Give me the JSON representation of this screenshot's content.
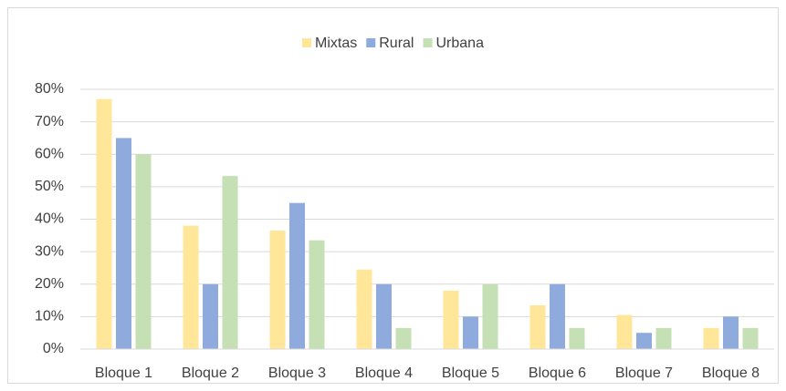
{
  "chart_data": {
    "type": "bar",
    "categories": [
      "Bloque 1",
      "Bloque 2",
      "Bloque 3",
      "Bloque 4",
      "Bloque 5",
      "Bloque 6",
      "Bloque 7",
      "Bloque 8"
    ],
    "series": [
      {
        "name": "Mixtas",
        "color": "#ffe699",
        "values": [
          77,
          38,
          36.5,
          24.5,
          18,
          13.5,
          10.5,
          6.5
        ]
      },
      {
        "name": "Rural",
        "color": "#8faadc",
        "values": [
          65,
          20,
          45,
          20,
          10,
          20,
          5,
          10
        ]
      },
      {
        "name": "Urbana",
        "color": "#c5e0b4",
        "values": [
          60,
          53.3,
          33.5,
          6.5,
          20,
          6.5,
          6.5,
          6.5
        ]
      }
    ],
    "ylim": [
      0,
      80
    ],
    "yticks": [
      {
        "value": 0,
        "label": "0%"
      },
      {
        "value": 10,
        "label": "10%"
      },
      {
        "value": 20,
        "label": "20%"
      },
      {
        "value": 30,
        "label": "30%"
      },
      {
        "value": 40,
        "label": "40%"
      },
      {
        "value": 50,
        "label": "50%"
      },
      {
        "value": 60,
        "label": "60%"
      },
      {
        "value": 70,
        "label": "70%"
      },
      {
        "value": 80,
        "label": "80%"
      }
    ],
    "grid": true,
    "legend": "top"
  }
}
